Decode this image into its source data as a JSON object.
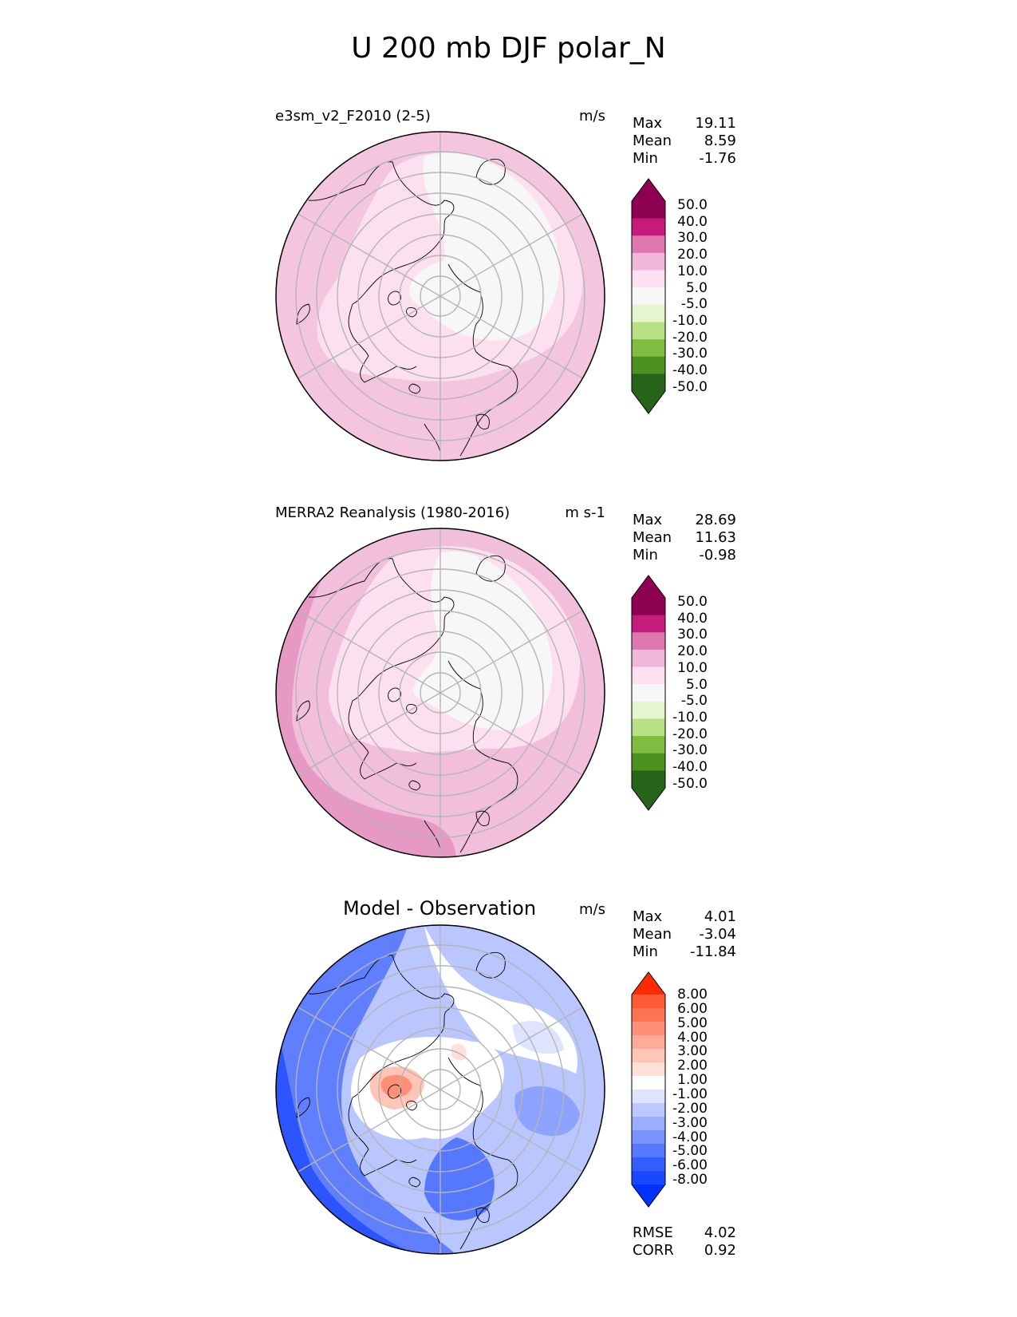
{
  "title": "U 200 mb DJF polar_N",
  "panels": [
    {
      "left_title": "e3sm_v2_F2010 (2-5)",
      "units": "m/s",
      "stats": [
        {
          "label": "Max",
          "value": "19.11"
        },
        {
          "label": "Mean",
          "value": "8.59"
        },
        {
          "label": "Min",
          "value": "-1.76"
        }
      ]
    },
    {
      "left_title": "MERRA2 Reanalysis (1980-2016)",
      "units": "m s-1",
      "stats": [
        {
          "label": "Max",
          "value": "28.69"
        },
        {
          "label": "Mean",
          "value": "11.63"
        },
        {
          "label": "Min",
          "value": "-0.98"
        }
      ]
    },
    {
      "center_title": "Model - Observation",
      "units": "m/s",
      "stats": [
        {
          "label": "Max",
          "value": "4.01"
        },
        {
          "label": "Mean",
          "value": "-3.04"
        },
        {
          "label": "Min",
          "value": "-11.84"
        }
      ],
      "metrics": [
        {
          "label": "RMSE",
          "value": "4.02"
        },
        {
          "label": "CORR",
          "value": "0.92"
        }
      ]
    }
  ],
  "colorbars": {
    "field": {
      "labels": [
        "50.0",
        "40.0",
        "30.0",
        "20.0",
        "10.0",
        "5.0",
        "-5.0",
        "-10.0",
        "-20.0",
        "-30.0",
        "-40.0",
        "-50.0"
      ],
      "colors": [
        "#8e0152",
        "#c51b7d",
        "#de77ae",
        "#f1b6da",
        "#fde0ef",
        "#f7f7f7",
        "#e6f5d0",
        "#b8e186",
        "#7fbc41",
        "#4d9221",
        "#276419"
      ],
      "over_color": "#8e0152",
      "under_color": "#276419"
    },
    "diff": {
      "labels": [
        "8.00",
        "6.00",
        "5.00",
        "4.00",
        "3.00",
        "2.00",
        "1.00",
        "-1.00",
        "-2.00",
        "-3.00",
        "-4.00",
        "-5.00",
        "-6.00",
        "-8.00"
      ],
      "colors": [
        "#ff5a36",
        "#ff7355",
        "#ff8f76",
        "#ffab98",
        "#ffc6b8",
        "#ffe0d8",
        "#ffffff",
        "#dee4ff",
        "#bcc8ff",
        "#9aadff",
        "#7892ff",
        "#5678ff",
        "#345dff",
        "#1a48ff"
      ],
      "over_color": "#ff2a00",
      "under_color": "#0033ff"
    }
  },
  "map": {
    "projection": "north polar stereographic",
    "colors": {
      "field_background": "#f3c5df",
      "obs_background": "#f1bedb",
      "diff_background": "#b9c6ff",
      "gridline": "#b5b5b5",
      "coastline": "#000000"
    }
  }
}
